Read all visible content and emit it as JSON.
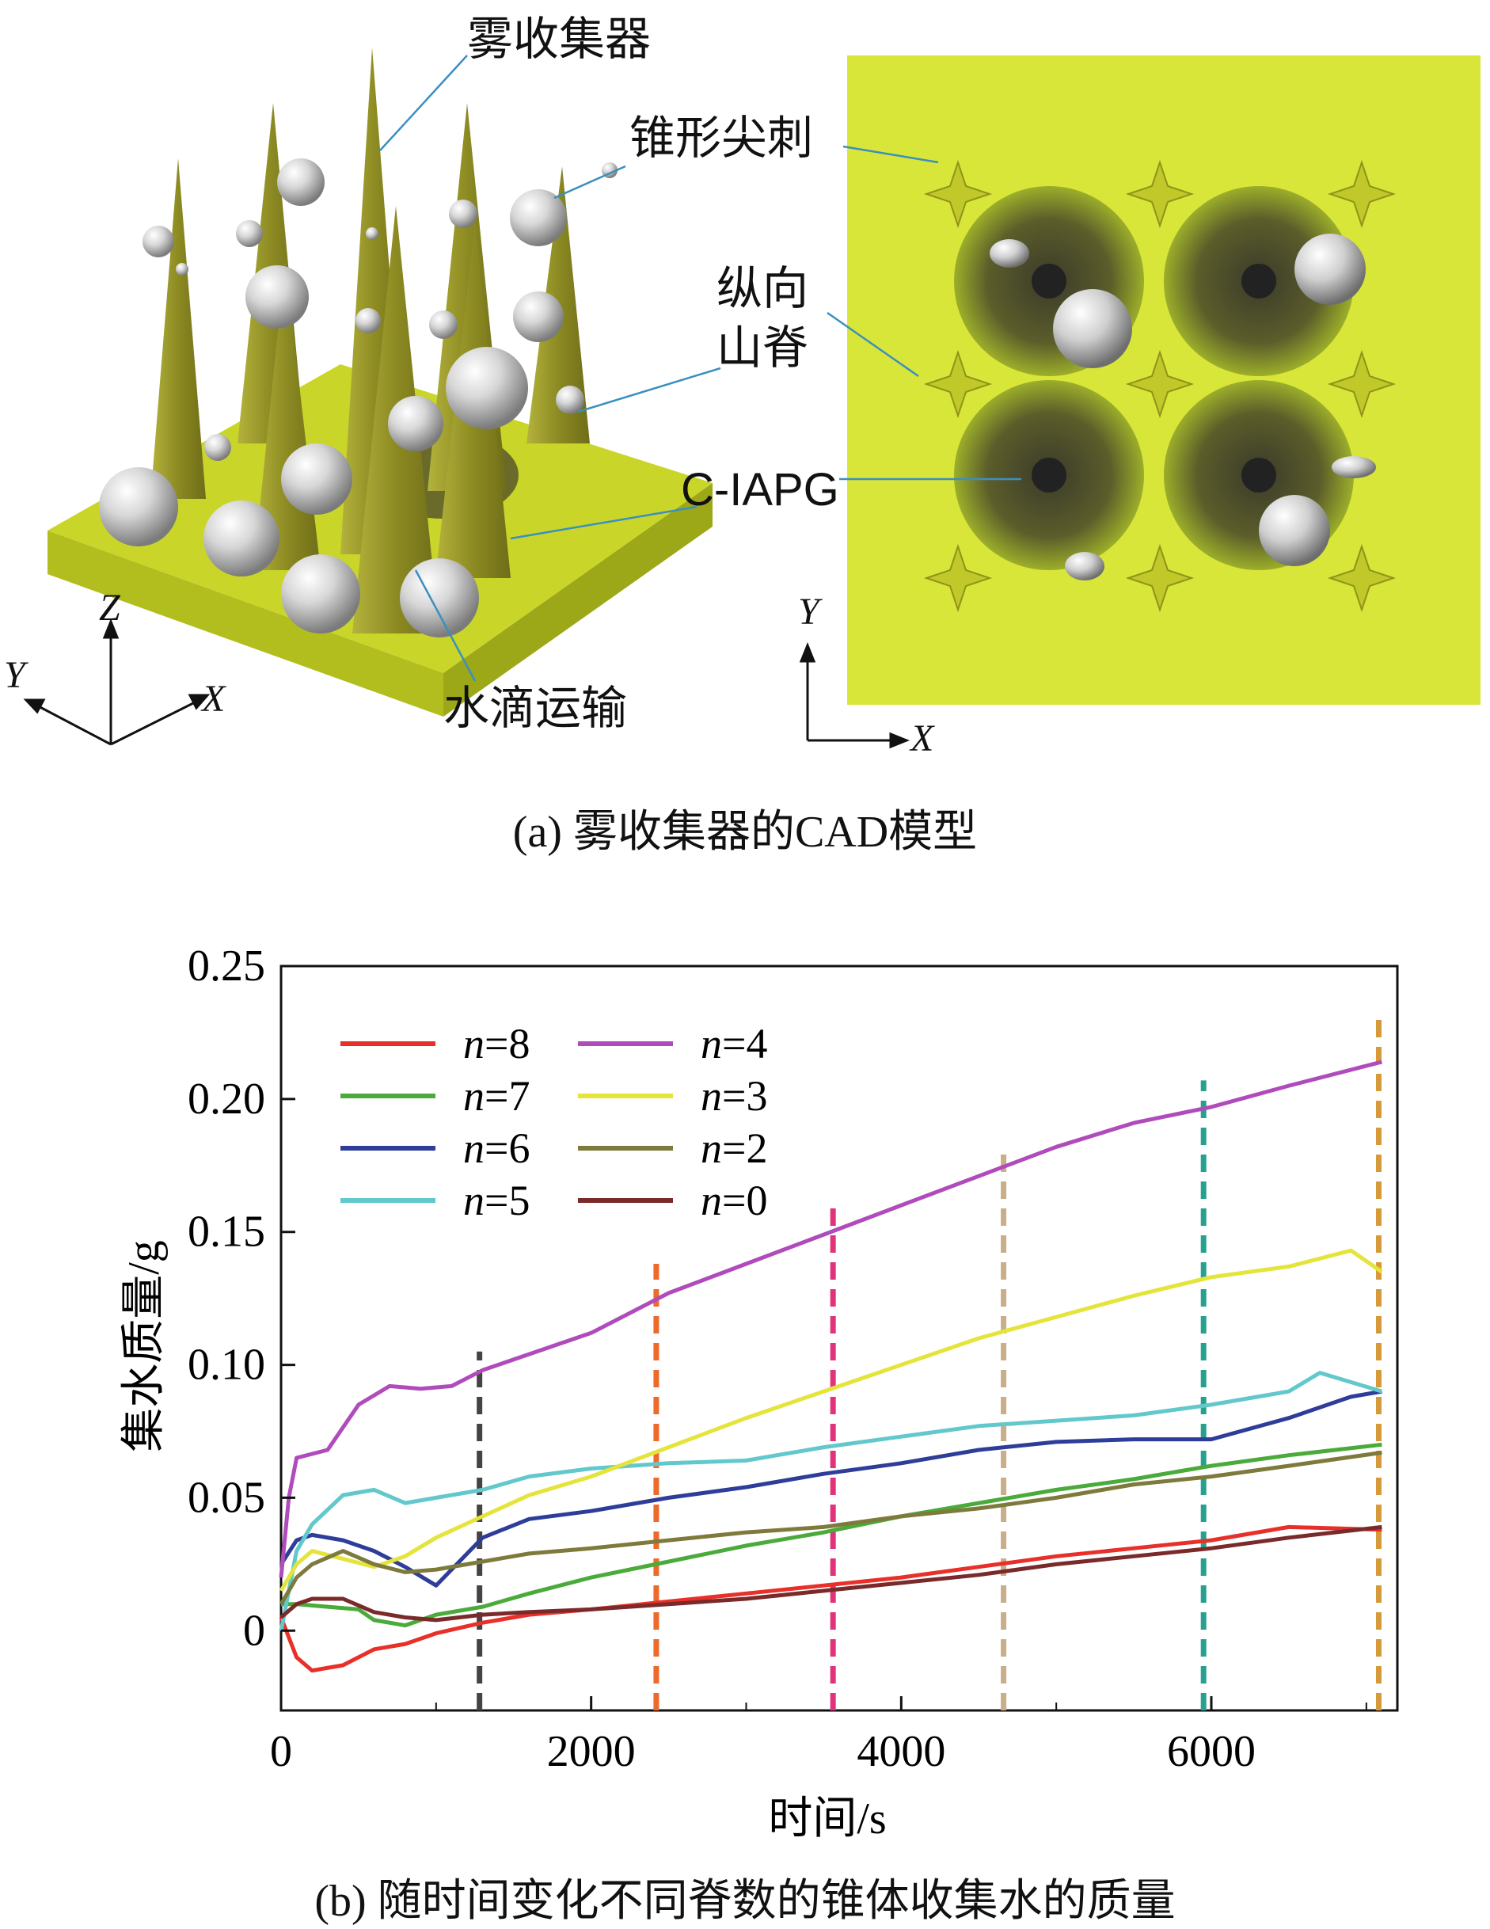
{
  "panel_a": {
    "labels": {
      "fog_collector": "雾收集器",
      "cone_spine": "锥形尖刺",
      "longitudinal_ridge_1": "纵向",
      "longitudinal_ridge_2": "山脊",
      "c_iapg": "C-IAPG",
      "water_transport": "水滴运输"
    },
    "left_axes": {
      "z": "Z",
      "y": "Y",
      "x": "X"
    },
    "right_axes": {
      "y": "Y",
      "x": "X"
    },
    "caption": "(a) 雾收集器的CAD模型",
    "colors": {
      "cone": "#9a9a2a",
      "base": "#c4d21a",
      "panel_bg": "#d8e63a"
    }
  },
  "panel_b": {
    "caption": "(b) 随时间变化不同脊数的锥体收集水的质量"
  },
  "chart_data": {
    "type": "line",
    "xlabel": "时间/s",
    "ylabel": "集水质量/g",
    "xlim": [
      0,
      7200
    ],
    "ylim": [
      -0.03,
      0.25
    ],
    "xticks": [
      0,
      2000,
      4000,
      6000
    ],
    "yticks": [
      0,
      0.05,
      0.1,
      0.15,
      0.2,
      0.25
    ],
    "ytick_labels": [
      "0",
      "0.05",
      "0.10",
      "0.15",
      "0.20",
      "0.25"
    ],
    "xtick_labels": [
      "0",
      "2000",
      "4000",
      "6000"
    ],
    "grid": false,
    "legend_position": "top-left",
    "series": [
      {
        "name": "n=8",
        "color": "#e8302a",
        "x": [
          0,
          100,
          200,
          400,
          600,
          800,
          1000,
          1300,
          1600,
          2000,
          2500,
          3000,
          3500,
          4000,
          4500,
          5000,
          5500,
          6000,
          6500,
          7100
        ],
        "y": [
          0.005,
          -0.01,
          -0.015,
          -0.013,
          -0.007,
          -0.005,
          -0.001,
          0.003,
          0.006,
          0.008,
          0.011,
          0.014,
          0.017,
          0.02,
          0.024,
          0.028,
          0.031,
          0.034,
          0.039,
          0.038
        ]
      },
      {
        "name": "n=7",
        "color": "#4aaa3a",
        "x": [
          0,
          100,
          300,
          500,
          600,
          800,
          1000,
          1300,
          1600,
          2000,
          2500,
          3000,
          3500,
          4000,
          4500,
          5000,
          5500,
          6000,
          6500,
          7100
        ],
        "y": [
          0.01,
          0.01,
          0.009,
          0.008,
          0.004,
          0.002,
          0.006,
          0.009,
          0.014,
          0.02,
          0.026,
          0.032,
          0.037,
          0.043,
          0.048,
          0.053,
          0.057,
          0.062,
          0.066,
          0.07
        ]
      },
      {
        "name": "n=6",
        "color": "#2e3d9a",
        "x": [
          0,
          100,
          200,
          400,
          600,
          800,
          1000,
          1300,
          1600,
          2000,
          2500,
          3000,
          3500,
          4000,
          4500,
          5000,
          5500,
          6000,
          6500,
          6900,
          7100
        ],
        "y": [
          0.025,
          0.034,
          0.036,
          0.034,
          0.03,
          0.024,
          0.017,
          0.035,
          0.042,
          0.045,
          0.05,
          0.054,
          0.059,
          0.063,
          0.068,
          0.071,
          0.072,
          0.072,
          0.08,
          0.088,
          0.09
        ]
      },
      {
        "name": "n=5",
        "color": "#62c8cc",
        "x": [
          0,
          100,
          200,
          400,
          600,
          800,
          1000,
          1300,
          1600,
          2000,
          2500,
          3000,
          3500,
          4000,
          4500,
          5000,
          5500,
          6000,
          6500,
          6700,
          7100
        ],
        "y": [
          0.0,
          0.03,
          0.04,
          0.051,
          0.053,
          0.048,
          0.05,
          0.053,
          0.058,
          0.061,
          0.063,
          0.064,
          0.069,
          0.073,
          0.077,
          0.079,
          0.081,
          0.085,
          0.09,
          0.097,
          0.09
        ]
      },
      {
        "name": "n=4",
        "color": "#b04bbb",
        "x": [
          0,
          50,
          100,
          300,
          500,
          700,
          900,
          1100,
          1300,
          1600,
          2000,
          2500,
          3000,
          3500,
          4000,
          4500,
          5000,
          5500,
          6000,
          6500,
          7100
        ],
        "y": [
          0.02,
          0.05,
          0.065,
          0.068,
          0.085,
          0.092,
          0.091,
          0.092,
          0.098,
          0.104,
          0.112,
          0.127,
          0.138,
          0.149,
          0.16,
          0.171,
          0.182,
          0.191,
          0.197,
          0.205,
          0.214
        ]
      },
      {
        "name": "n=3",
        "color": "#e4e43a",
        "x": [
          0,
          100,
          200,
          400,
          600,
          800,
          1000,
          1300,
          1600,
          2000,
          2500,
          3000,
          3500,
          4000,
          4500,
          5000,
          5500,
          6000,
          6500,
          6900,
          7100
        ],
        "y": [
          0.015,
          0.025,
          0.03,
          0.027,
          0.024,
          0.028,
          0.035,
          0.043,
          0.051,
          0.058,
          0.069,
          0.08,
          0.09,
          0.1,
          0.11,
          0.118,
          0.126,
          0.133,
          0.137,
          0.143,
          0.135
        ]
      },
      {
        "name": "n=2",
        "color": "#7d7a3b",
        "x": [
          0,
          100,
          200,
          400,
          600,
          800,
          1000,
          1300,
          1600,
          2000,
          2500,
          3000,
          3500,
          4000,
          4500,
          5000,
          5500,
          6000,
          6500,
          7100
        ],
        "y": [
          0.01,
          0.02,
          0.025,
          0.03,
          0.025,
          0.022,
          0.023,
          0.026,
          0.029,
          0.031,
          0.034,
          0.037,
          0.039,
          0.043,
          0.046,
          0.05,
          0.055,
          0.058,
          0.062,
          0.067
        ]
      },
      {
        "name": "n=0",
        "color": "#7a2a2a",
        "x": [
          0,
          100,
          200,
          400,
          600,
          800,
          1000,
          1300,
          1600,
          2000,
          2500,
          3000,
          3500,
          4000,
          4500,
          5000,
          5500,
          6000,
          6500,
          7100
        ],
        "y": [
          0.005,
          0.01,
          0.012,
          0.012,
          0.007,
          0.005,
          0.004,
          0.006,
          0.007,
          0.008,
          0.01,
          0.012,
          0.015,
          0.018,
          0.021,
          0.025,
          0.028,
          0.031,
          0.035,
          0.039
        ]
      }
    ],
    "vlines": [
      {
        "x": 1280,
        "y_top": 0.105,
        "color": "#444444"
      },
      {
        "x": 2420,
        "y_top": 0.138,
        "color": "#ee6a2a"
      },
      {
        "x": 3560,
        "y_top": 0.16,
        "color": "#e0337a"
      },
      {
        "x": 4660,
        "y_top": 0.18,
        "color": "#c9ae8a"
      },
      {
        "x": 5950,
        "y_top": 0.207,
        "color": "#27a090"
      },
      {
        "x": 7080,
        "y_top": 0.23,
        "color": "#d79a3a"
      }
    ]
  }
}
